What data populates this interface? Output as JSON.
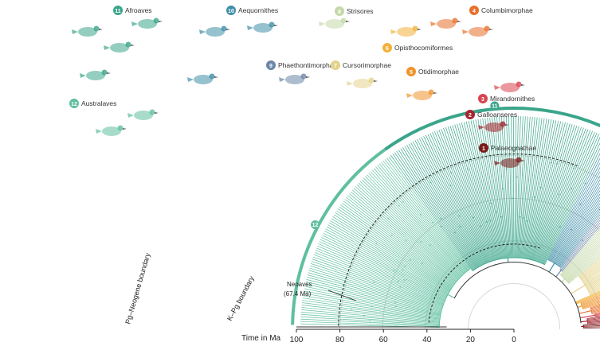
{
  "axis": {
    "title": "Time in Ma",
    "ticks": [
      "100",
      "80",
      "60",
      "40",
      "20",
      "0"
    ],
    "tick_values": [
      100,
      80,
      60,
      40,
      20,
      0
    ],
    "range": [
      100,
      0
    ]
  },
  "boundaries": {
    "pg_neogene": {
      "label": "Pg–Neogene boundary",
      "age": 23
    },
    "k_pg": {
      "label": "K–Pg boundary",
      "age": 66
    }
  },
  "neoaves_note": {
    "line1": "Neoaves",
    "line2": "(67.4 Ma)"
  },
  "clades": [
    {
      "num": "1",
      "name": "Palaeognathae",
      "color": "#7a1a1a"
    },
    {
      "num": "2",
      "name": "Galloanseres",
      "color": "#a3262f"
    },
    {
      "num": "3",
      "name": "Mirandornithes",
      "color": "#d8434f"
    },
    {
      "num": "4",
      "name": "Columbimorphae",
      "color": "#e8702a"
    },
    {
      "num": "5",
      "name": "Otidimorphae",
      "color": "#f0932b"
    },
    {
      "num": "6",
      "name": "Opisthocomiformes",
      "color": "#f3b13a"
    },
    {
      "num": "7",
      "name": "Cursorimorphae",
      "color": "#e3d28a"
    },
    {
      "num": "8",
      "name": "Strisores",
      "color": "#c4d8a8"
    },
    {
      "num": "9",
      "name": "Phaethontimorphae",
      "color": "#6b86a6"
    },
    {
      "num": "10",
      "name": "Aequornithes",
      "color": "#3f8ea8"
    },
    {
      "num": "11",
      "name": "Afroaves",
      "color": "#3aa58a"
    },
    {
      "num": "12",
      "name": "Australaves",
      "color": "#5fbfa0"
    }
  ]
}
